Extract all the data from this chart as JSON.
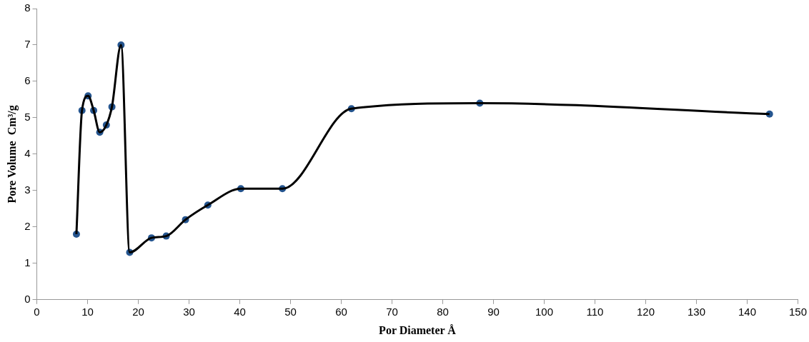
{
  "chart_data": {
    "type": "line",
    "xlabel": "Por Diameter Å",
    "ylabel": "Pore Volume  Cm³/g",
    "xlim": [
      0,
      150
    ],
    "xticks": [
      0,
      10,
      20,
      30,
      40,
      50,
      60,
      70,
      80,
      90,
      100,
      110,
      120,
      130,
      140,
      150
    ],
    "ylim": [
      0,
      8
    ],
    "yticks": [
      0,
      1,
      2,
      3,
      4,
      5,
      6,
      7,
      8
    ],
    "grid": false,
    "legend": false,
    "x": [
      7.8,
      8.9,
      10.1,
      11.2,
      12.4,
      13.7,
      14.8,
      16.6,
      18.3,
      22.6,
      25.5,
      29.3,
      33.7,
      40.2,
      48.4,
      62.0,
      87.3,
      144.4
    ],
    "series": [
      {
        "color": "#000000",
        "marker": "none",
        "values": [
          1.8,
          5.2,
          5.6,
          5.2,
          4.6,
          4.8,
          5.3,
          7.0,
          1.3,
          1.7,
          1.75,
          2.2,
          2.6,
          3.05,
          3.05,
          5.25,
          5.4,
          5.1
        ]
      },
      {
        "type": "scatter",
        "color": "#25558f",
        "marker": "circle",
        "values": [
          1.8,
          5.2,
          5.6,
          5.2,
          4.6,
          4.8,
          5.3,
          7.0,
          1.3,
          1.7,
          1.75,
          2.2,
          2.6,
          3.05,
          3.05,
          5.25,
          5.4,
          5.1
        ]
      }
    ]
  }
}
